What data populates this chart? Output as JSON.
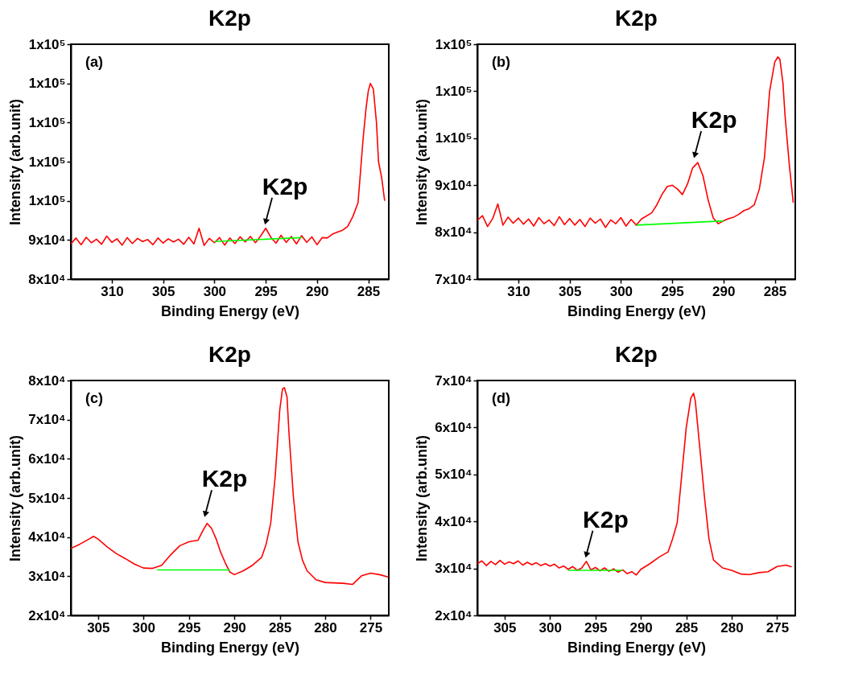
{
  "chart_data": [
    {
      "type": "line",
      "title": "K2p",
      "xlabel": "Binding Energy (eV)",
      "ylabel": "Intensity (arb.unit)",
      "xlim": [
        314,
        283
      ],
      "xticks": [
        310,
        305,
        300,
        295,
        290,
        285
      ],
      "ylim": [
        80000,
        140000
      ],
      "yticks": [
        {
          "value": 80000,
          "label": "8x10⁴"
        },
        {
          "value": 90000,
          "label": "9x10⁴"
        },
        {
          "value": 100000,
          "label": "1x10⁵"
        },
        {
          "value": 110000,
          "label": "1x10⁵"
        },
        {
          "value": 120000,
          "label": "1x10⁵"
        },
        {
          "value": 130000,
          "label": "1x10⁵"
        },
        {
          "value": 140000,
          "label": "1x10⁵"
        }
      ],
      "annotations": [
        "(a)",
        {
          "text": "K2p",
          "x": 295,
          "y": 93000
        }
      ],
      "series": [
        {
          "color": "#ff0000",
          "x": [
            314,
            313.5,
            313,
            312.5,
            312,
            311.5,
            311,
            310.5,
            310,
            309.5,
            309,
            308.5,
            308,
            307.5,
            307,
            306.5,
            306,
            305.5,
            305,
            304.5,
            304,
            303.5,
            303,
            302.5,
            302,
            301.5,
            301,
            300.5,
            300,
            299.5,
            299,
            298.5,
            298,
            297.5,
            297,
            296.5,
            296,
            295.5,
            295,
            294.5,
            294,
            293.5,
            293,
            292.5,
            292,
            291.5,
            291,
            290.5,
            290,
            289.5,
            289,
            288.5,
            288,
            287.5,
            287,
            286.5,
            286,
            285.8,
            285.5,
            285.2,
            285,
            284.8,
            284.5,
            284.2,
            284,
            283.7,
            283.4
          ],
          "values": [
            89000,
            90500,
            88800,
            90700,
            89300,
            90200,
            88900,
            91000,
            89400,
            90300,
            88700,
            90600,
            89100,
            90400,
            89600,
            90100,
            88800,
            90500,
            89200,
            90300,
            89500,
            90200,
            88900,
            90700,
            89000,
            93000,
            88600,
            90400,
            89300,
            90600,
            88700,
            90500,
            89100,
            90800,
            89500,
            90900,
            89300,
            91000,
            93000,
            90700,
            89200,
            91200,
            89400,
            90900,
            89000,
            91100,
            89400,
            90800,
            88800,
            90600,
            90500,
            91500,
            92000,
            92500,
            93500,
            96000,
            99500,
            106000,
            116000,
            124000,
            128000,
            130000,
            128500,
            120000,
            110000,
            106000,
            100000
          ]
        },
        {
          "color": "#00ff00",
          "x": [
            300,
            291.5
          ],
          "values": [
            89600,
            90600
          ]
        }
      ]
    },
    {
      "type": "line",
      "title": "K2p",
      "xlabel": "Binding Energy (eV)",
      "ylabel": "Intensity (arb.unit)",
      "xlim": [
        314,
        283
      ],
      "xticks": [
        310,
        305,
        300,
        295,
        290,
        285
      ],
      "ylim": [
        70000,
        120000
      ],
      "yticks": [
        {
          "value": 70000,
          "label": "7x10⁴"
        },
        {
          "value": 80000,
          "label": "8x10⁴"
        },
        {
          "value": 90000,
          "label": "9x10⁴"
        },
        {
          "value": 100000,
          "label": "1x10⁵"
        },
        {
          "value": 110000,
          "label": "1x10⁵"
        },
        {
          "value": 120000,
          "label": "1x10⁵"
        }
      ],
      "annotations": [
        "(b)",
        {
          "text": "K2p",
          "x": 292.8,
          "y": 95000
        }
      ],
      "series": [
        {
          "color": "#ff0000",
          "x": [
            314,
            313.5,
            313,
            312.5,
            312,
            311.5,
            311,
            310.5,
            310,
            309.5,
            309,
            308.5,
            308,
            307.5,
            307,
            306.5,
            306,
            305.5,
            305,
            304.5,
            304,
            303.5,
            303,
            302.5,
            302,
            301.5,
            301,
            300.5,
            300,
            299.5,
            299,
            298.5,
            298,
            297,
            296.5,
            296,
            295.5,
            295,
            294.5,
            294,
            293.5,
            293,
            292.5,
            292,
            291.5,
            291,
            290.5,
            290,
            289.5,
            289,
            288.5,
            288,
            287.5,
            287,
            286.5,
            286,
            285.5,
            285,
            284.7,
            284.5,
            284.2,
            284,
            283.6,
            283.2
          ],
          "values": [
            82500,
            83500,
            81200,
            82900,
            86000,
            81500,
            83200,
            81900,
            83000,
            81700,
            82800,
            81300,
            83100,
            81800,
            82600,
            81400,
            83300,
            81600,
            82900,
            81500,
            82700,
            81200,
            83000,
            81900,
            82800,
            81000,
            82600,
            81800,
            83100,
            81300,
            82700,
            81500,
            82800,
            84100,
            85800,
            88000,
            89700,
            90000,
            89200,
            88000,
            90300,
            93700,
            94800,
            92000,
            86900,
            83000,
            81800,
            82400,
            82900,
            83200,
            83800,
            84600,
            85000,
            85800,
            89200,
            95900,
            110000,
            116200,
            117300,
            116800,
            111700,
            104900,
            94800,
            86300
          ]
        },
        {
          "color": "#00ff00",
          "x": [
            298.5,
            290
          ],
          "values": [
            81500,
            82400
          ]
        }
      ]
    },
    {
      "type": "line",
      "title": "K2p",
      "xlabel": "Binding Energy (eV)",
      "ylabel": "Intensity (arb.unit)",
      "xlim": [
        308,
        273
      ],
      "xticks": [
        305,
        300,
        295,
        290,
        285,
        280,
        275
      ],
      "ylim": [
        20000,
        80000
      ],
      "yticks": [
        {
          "value": 20000,
          "label": "2x10⁴"
        },
        {
          "value": 30000,
          "label": "3x10⁴"
        },
        {
          "value": 40000,
          "label": "4x10⁴"
        },
        {
          "value": 50000,
          "label": "5x10⁴"
        },
        {
          "value": 60000,
          "label": "6x10⁴"
        },
        {
          "value": 70000,
          "label": "7x10⁴"
        },
        {
          "value": 80000,
          "label": "8x10⁴"
        }
      ],
      "annotations": [
        "(c)",
        {
          "text": "K2p",
          "x": 293.2,
          "y": 44200
        }
      ],
      "series": [
        {
          "color": "#ff0000",
          "x": [
            308,
            307,
            306,
            305.5,
            305,
            304,
            303,
            302,
            301,
            300,
            299,
            298,
            297,
            296,
            295,
            294,
            293.5,
            293,
            292.5,
            292,
            291.5,
            291,
            290.5,
            290,
            289,
            288,
            287,
            286.5,
            286,
            285.5,
            285,
            284.7,
            284.5,
            284.2,
            284,
            283.5,
            283,
            282.5,
            282,
            281,
            280,
            279,
            278,
            277,
            276,
            275,
            274,
            273.1
          ],
          "values": [
            37100,
            38200,
            39500,
            40200,
            39500,
            37500,
            35800,
            34500,
            33100,
            32100,
            32000,
            32800,
            35500,
            37800,
            38800,
            39200,
            41500,
            43500,
            42200,
            39500,
            36100,
            33400,
            31100,
            30400,
            31400,
            32800,
            34800,
            38200,
            43500,
            55600,
            72500,
            77800,
            78200,
            75800,
            67100,
            50300,
            38800,
            34100,
            31400,
            29100,
            28400,
            28300,
            28200,
            27900,
            30100,
            30800,
            30400,
            29800
          ]
        },
        {
          "color": "#00ff00",
          "x": [
            298.5,
            290.5
          ],
          "values": [
            31600,
            31600
          ]
        }
      ]
    },
    {
      "type": "line",
      "title": "K2p",
      "xlabel": "Binding Energy (eV)",
      "ylabel": "Intensity (arb.unit)",
      "xlim": [
        308,
        273
      ],
      "xticks": [
        305,
        300,
        295,
        290,
        285,
        280,
        275
      ],
      "ylim": [
        20000,
        70000
      ],
      "yticks": [
        {
          "value": 20000,
          "label": "2x10⁴"
        },
        {
          "value": 30000,
          "label": "3x10⁴"
        },
        {
          "value": 40000,
          "label": "4x10⁴"
        },
        {
          "value": 50000,
          "label": "5x10⁴"
        },
        {
          "value": 60000,
          "label": "6x10⁴"
        },
        {
          "value": 70000,
          "label": "7x10⁴"
        }
      ],
      "annotations": [
        "(d)",
        {
          "text": "K2p",
          "x": 296,
          "y": 31500
        }
      ],
      "series": [
        {
          "color": "#ff0000",
          "x": [
            308,
            307.5,
            307,
            306.5,
            306,
            305.5,
            305,
            304.5,
            304,
            303.5,
            303,
            302.5,
            302,
            301.5,
            301,
            300.5,
            300,
            299.5,
            299,
            298.5,
            298,
            297.5,
            297,
            296.5,
            296,
            295.5,
            295,
            294.5,
            294,
            293.5,
            293,
            292.5,
            292,
            291.5,
            291,
            290.5,
            290,
            289,
            288,
            287,
            286.5,
            286,
            285.5,
            285,
            284.5,
            284.2,
            284,
            283.5,
            283,
            282.5,
            282,
            281,
            280,
            279,
            278,
            277,
            276,
            275,
            274,
            273.4
          ],
          "values": [
            31000,
            31600,
            30600,
            31500,
            30800,
            31700,
            30900,
            31400,
            31000,
            31600,
            30700,
            31300,
            30800,
            31200,
            30600,
            31000,
            30500,
            30900,
            30100,
            30500,
            29800,
            30400,
            29600,
            30100,
            31500,
            29700,
            30200,
            29500,
            30100,
            29400,
            29900,
            29200,
            29700,
            28900,
            29300,
            28600,
            29800,
            31000,
            32400,
            33500,
            36300,
            39700,
            49800,
            60000,
            66200,
            67300,
            65600,
            55500,
            45300,
            36300,
            31800,
            30100,
            29600,
            28800,
            28700,
            29100,
            29300,
            30400,
            30700,
            30300
          ]
        },
        {
          "color": "#00ff00",
          "x": [
            298,
            292
          ],
          "values": [
            29600,
            29600
          ]
        }
      ]
    }
  ]
}
